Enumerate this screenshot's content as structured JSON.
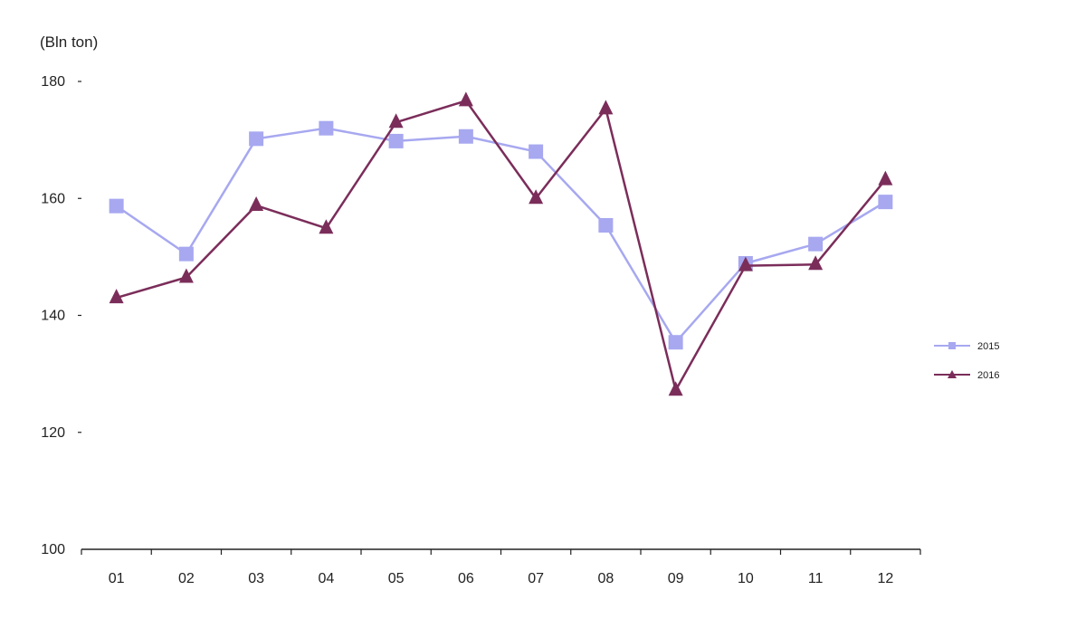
{
  "chart_data": {
    "type": "line",
    "ylabel": "(Bln ton)",
    "ylim": [
      100,
      180
    ],
    "yticks": [
      100,
      120,
      140,
      160,
      180
    ],
    "categories": [
      "01",
      "02",
      "03",
      "04",
      "05",
      "06",
      "07",
      "08",
      "09",
      "10",
      "11",
      "12"
    ],
    "series": [
      {
        "name": "2015",
        "color": "#a7a8f0",
        "marker": "square",
        "values": [
          158.7,
          150.5,
          170.2,
          172.0,
          169.8,
          170.6,
          168.0,
          155.4,
          135.4,
          148.9,
          152.2,
          159.4
        ]
      },
      {
        "name": "2016",
        "color": "#7b2d5a",
        "marker": "triangle",
        "values": [
          143.0,
          146.5,
          158.8,
          154.9,
          173.0,
          176.7,
          160.0,
          175.3,
          127.2,
          148.5,
          148.7,
          163.2
        ]
      }
    ],
    "legend": "right",
    "grid": false
  }
}
